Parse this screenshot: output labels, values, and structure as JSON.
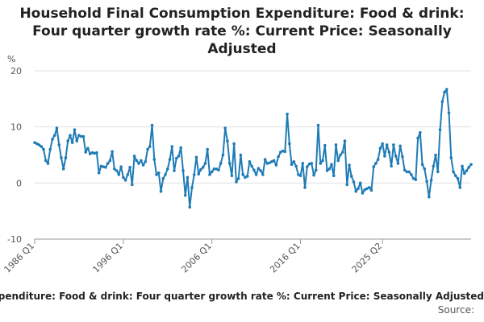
{
  "title": "Household Final Consumption Expenditure: Food & drink: Four quarter growth rate %: Current Price: Seasonally Adjusted",
  "footer": {
    "series_label": "Household Final Consumption Expenditure: Food & drink: Four quarter growth rate %: Current Price: Seasonally Adjusted",
    "source": "Source:"
  },
  "colors": {
    "line": "#1f7bb6",
    "grid": "#e0e0e0",
    "axis": "#999999"
  },
  "chart_data": {
    "type": "line",
    "title": "Household Final Consumption Expenditure: Food & drink: Four quarter growth rate %: Current Price: Seasonally Adjusted",
    "ylabel": "%",
    "xlabel": "",
    "ylim": [
      -10,
      20
    ],
    "yticks": [
      20,
      10,
      0,
      -10
    ],
    "xticks": [
      "1986 Q1",
      "1996 Q1",
      "2006 Q1",
      "2016 Q1",
      "2025 Q2"
    ],
    "x_start": "1986 Q1",
    "x_end": "2025 Q2",
    "grid": true,
    "series": [
      {
        "name": "Household Final Consumption Expenditure: Food & drink: Four quarter growth rate %: Current Price: Seasonally Adjusted",
        "values": [
          7.2,
          7.0,
          6.8,
          6.5,
          6.0,
          4.0,
          3.5,
          6.0,
          7.8,
          8.5,
          9.8,
          6.8,
          4.5,
          2.5,
          4.5,
          7.5,
          8.5,
          7.2,
          9.5,
          7.5,
          8.5,
          8.3,
          8.3,
          5.5,
          6.2,
          5.2,
          5.4,
          5.3,
          5.4,
          1.8,
          3.0,
          2.9,
          2.8,
          3.5,
          4.0,
          5.6,
          2.5,
          2.2,
          1.5,
          2.9,
          1.0,
          0.5,
          1.5,
          2.8,
          -0.3,
          4.8,
          4.0,
          3.5,
          4.0,
          3.2,
          3.8,
          6.0,
          6.5,
          10.3,
          4.2,
          1.5,
          1.8,
          -1.5,
          0.8,
          1.5,
          2.5,
          4.2,
          6.5,
          2.2,
          4.4,
          4.8,
          6.3,
          2.2,
          -2.2,
          1.0,
          -4.3,
          -0.8,
          1.5,
          4.6,
          1.6,
          2.4,
          2.8,
          3.5,
          6.0,
          1.5,
          2.0,
          2.5,
          2.5,
          2.3,
          3.5,
          5.0,
          9.8,
          7.5,
          3.5,
          1.3,
          7.0,
          0.2,
          0.8,
          5.0,
          1.5,
          1.0,
          1.2,
          3.8,
          3.0,
          2.3,
          1.5,
          2.6,
          2.2,
          1.5,
          4.2,
          3.5,
          3.6,
          3.8,
          4.0,
          3.2,
          4.7,
          5.5,
          5.7,
          5.6,
          12.3,
          7.0,
          3.3,
          3.8,
          3.0,
          1.5,
          1.3,
          3.5,
          -0.8,
          2.9,
          3.4,
          3.5,
          1.4,
          2.3,
          10.3,
          3.5,
          4.0,
          6.7,
          2.2,
          2.5,
          3.3,
          1.3,
          6.8,
          4.0,
          5.0,
          5.5,
          7.5,
          -0.3,
          3.2,
          1.2,
          0.2,
          -1.5,
          -1.0,
          0.0,
          -1.8,
          -1.2,
          -1.0,
          -0.8,
          -1.3,
          2.9,
          3.5,
          4.2,
          6.2,
          7.0,
          4.8,
          6.8,
          5.5,
          3.0,
          6.8,
          4.8,
          3.5,
          6.6,
          4.7,
          2.3,
          2.0,
          2.0,
          1.5,
          0.8,
          0.6,
          8.0,
          9.0,
          3.3,
          2.5,
          0.3,
          -2.5,
          0.5,
          3.0,
          5.0,
          2.0,
          9.5,
          14.5,
          16.2,
          16.7,
          12.5,
          4.5,
          2.0,
          1.3,
          0.8,
          -0.8,
          3.0,
          1.7,
          2.2,
          2.8,
          3.3
        ]
      }
    ]
  }
}
